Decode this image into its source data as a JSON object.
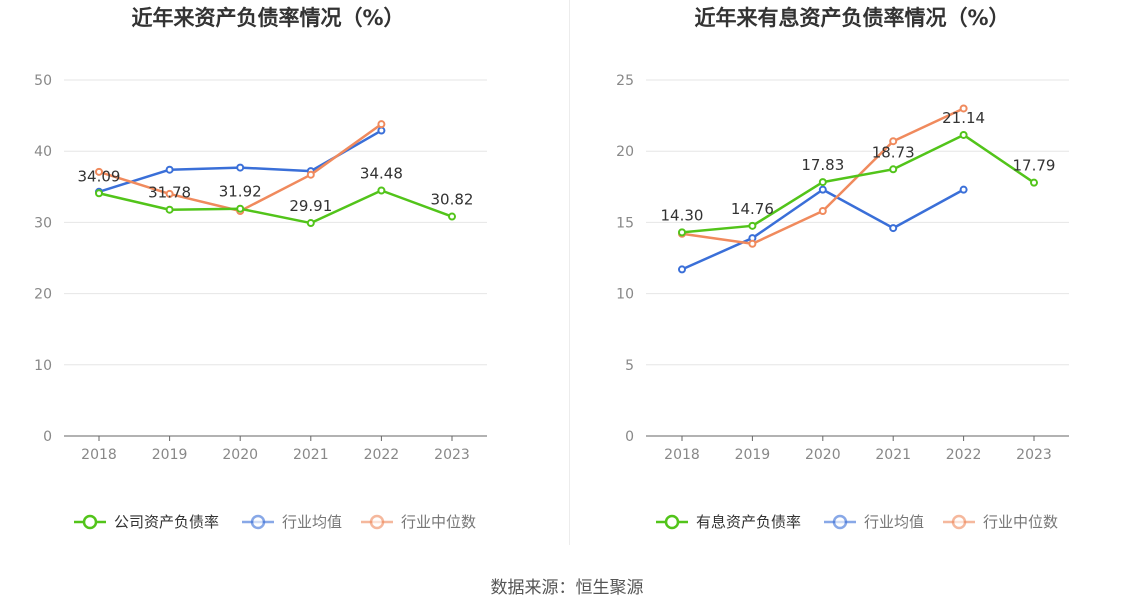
{
  "source_text": "数据来源：恒生聚源",
  "colors": {
    "company": "#52c41a",
    "avg": "#3a6fd8",
    "median": "#f08a5d",
    "axis": "#666666",
    "grid": "#e6e6e6",
    "label": "#333333",
    "tick": "#888888"
  },
  "chart_data": [
    {
      "type": "line",
      "title": "近年来资产负债率情况（%）",
      "categories": [
        "2018",
        "2019",
        "2020",
        "2021",
        "2022",
        "2023"
      ],
      "ylim": [
        0,
        50
      ],
      "yticks": [
        0,
        10,
        20,
        30,
        40,
        50
      ],
      "grid": true,
      "legend_position": "bottom",
      "series": [
        {
          "name": "公司资产负债率",
          "color": "company",
          "values": [
            34.09,
            31.78,
            31.92,
            29.91,
            34.48,
            30.82
          ],
          "labels": [
            "34.09",
            "31.78",
            "31.92",
            "29.91",
            "34.48",
            "30.82"
          ]
        },
        {
          "name": "行业均值",
          "color": "avg",
          "values": [
            34.3,
            37.4,
            37.7,
            37.2,
            42.9,
            null
          ]
        },
        {
          "name": "行业中位数",
          "color": "median",
          "values": [
            37.1,
            34.0,
            31.6,
            36.7,
            43.8,
            null
          ]
        }
      ]
    },
    {
      "type": "line",
      "title": "近年来有息资产负债率情况（%）",
      "categories": [
        "2018",
        "2019",
        "2020",
        "2021",
        "2022",
        "2023"
      ],
      "ylim": [
        0,
        25
      ],
      "yticks": [
        0,
        5,
        10,
        15,
        20,
        25
      ],
      "grid": true,
      "legend_position": "bottom",
      "series": [
        {
          "name": "有息资产负债率",
          "color": "company",
          "values": [
            14.3,
            14.76,
            17.83,
            18.73,
            21.14,
            17.79
          ],
          "labels": [
            "14.30",
            "14.76",
            "17.83",
            "18.73",
            "21.14",
            "17.79"
          ]
        },
        {
          "name": "行业均值",
          "color": "avg",
          "values": [
            11.7,
            13.9,
            17.3,
            14.6,
            17.3,
            null
          ]
        },
        {
          "name": "行业中位数",
          "color": "median",
          "values": [
            14.2,
            13.5,
            15.8,
            20.7,
            23.0,
            null
          ]
        }
      ]
    }
  ]
}
